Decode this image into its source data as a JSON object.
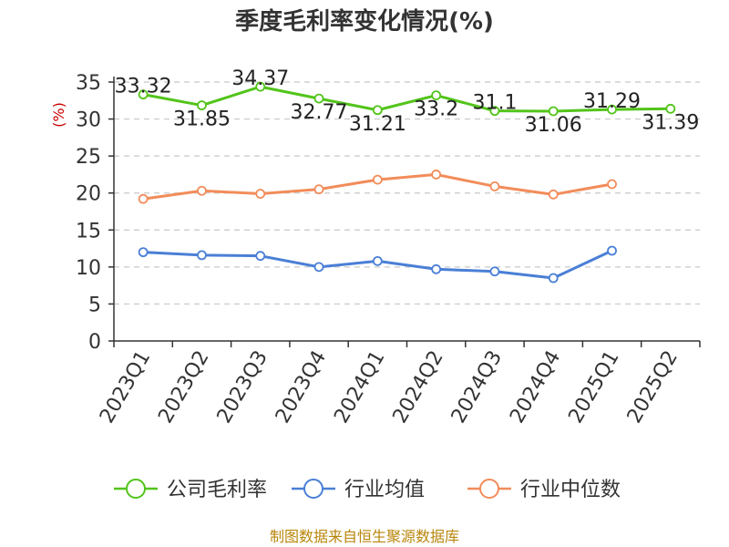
{
  "chart_data": {
    "type": "line",
    "title": "季度毛利率变化情况(%)",
    "ylabel": "(%)",
    "ylim": [
      0,
      35
    ],
    "yticks": [
      0,
      5,
      10,
      15,
      20,
      25,
      30,
      35
    ],
    "grid": true,
    "legend_position": "bottom",
    "categories": [
      "2023Q1",
      "2023Q2",
      "2023Q3",
      "2023Q4",
      "2024Q1",
      "2024Q2",
      "2024Q3",
      "2024Q4",
      "2025Q1",
      "2025Q2"
    ],
    "series": [
      {
        "name": "公司毛利率",
        "color": "#52c41a",
        "values": [
          33.32,
          31.85,
          34.37,
          32.77,
          31.21,
          33.2,
          31.1,
          31.06,
          31.29,
          31.39
        ],
        "labels": [
          "33.32",
          "31.85",
          "34.37",
          "32.77",
          "31.21",
          "33.2",
          "31.1",
          "31.06",
          "31.29",
          "31.39"
        ]
      },
      {
        "name": "行业均值",
        "color": "#4a7fd6",
        "values": [
          12.0,
          11.6,
          11.5,
          10.0,
          10.8,
          9.7,
          9.4,
          8.5,
          12.2,
          null
        ]
      },
      {
        "name": "行业中位数",
        "color": "#f28c5a",
        "values": [
          19.2,
          20.3,
          19.9,
          20.5,
          21.8,
          22.5,
          20.9,
          19.8,
          21.2,
          null
        ]
      }
    ],
    "source": "制图数据来自恒生聚源数据库"
  }
}
